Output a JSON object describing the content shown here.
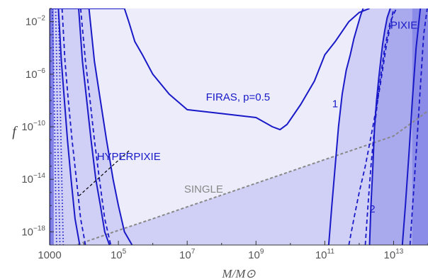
{
  "chart_data": {
    "type": "line",
    "xlabel": "M/M⊙",
    "ylabel": "f",
    "xscale": "log",
    "yscale": "log",
    "xlim": [
      1000,
      100000000000000.0
    ],
    "ylim": [
      1e-19,
      0.1
    ],
    "x_ticks": [
      {
        "base": "1000",
        "exp": ""
      },
      {
        "base": "10",
        "exp": "5"
      },
      {
        "base": "10",
        "exp": "7"
      },
      {
        "base": "10",
        "exp": "9"
      },
      {
        "base": "10",
        "exp": "11"
      },
      {
        "base": "10",
        "exp": "13"
      }
    ],
    "y_ticks": [
      {
        "base": "10",
        "exp": "−2"
      },
      {
        "base": "10",
        "exp": "−6"
      },
      {
        "base": "10",
        "exp": "−10"
      },
      {
        "base": "10",
        "exp": "−14"
      },
      {
        "base": "10",
        "exp": "−18"
      }
    ],
    "grid": false,
    "colors": {
      "curve": "#1919c8",
      "single": "#888888",
      "fill_light": "#ececfb",
      "fill_mid": "#d0d0f6",
      "fill_dark": "#a9a9ee",
      "fill_darkest": "#7f7fe6"
    },
    "series": [
      {
        "name": "FIRAS, p=0.5",
        "style": "solid",
        "x": [
          1000,
          1000,
          3000,
          10000,
          30000,
          100000,
          150000,
          200000,
          300000,
          500000,
          1000000,
          3000000,
          10000000,
          100000000,
          1000000000,
          3000000000,
          5000000000,
          8000000000,
          20000000000,
          50000000000,
          100000000000,
          200000000000,
          500000000000,
          1000000000000,
          2000000000000
        ],
        "y": [
          1e-19,
          0.1,
          0.1,
          0.1,
          0.1,
          0.1,
          0.1,
          0.01,
          0.0003,
          3e-05,
          1e-06,
          3e-08,
          2e-09,
          1e-09,
          5e-10,
          1e-10,
          6e-11,
          1.5e-10,
          5e-09,
          3e-07,
          3e-05,
          0.0003,
          0.01,
          0.05,
          0.1
        ]
      },
      {
        "name": "",
        "style": "dashed",
        "x": [
          1000,
          10000,
          100000,
          1000000,
          10000000,
          100000000,
          1000000000,
          10000000000,
          100000000000,
          1000000000000,
          10000000000000,
          100000000000000
        ],
        "y": [
          2e-20,
          1.6e-19,
          1.3e-18,
          1e-17,
          8e-17,
          6.3e-16,
          5e-15,
          4e-14,
          3.2e-13,
          2.5e-12,
          2e-11,
          1.6e-09
        ]
      },
      {
        "name": "",
        "style": "solid",
        "x": [
          130000000000,
          160000000000,
          200000000000,
          250000000000,
          320000000000,
          420000000000,
          550000000000,
          700000000000,
          900000000000,
          1100000000000,
          1300000000000
        ],
        "y": [
          1e-19,
          1e-16,
          1e-13,
          1e-10,
          3e-08,
          2e-06,
          3e-05,
          0.0005,
          0.005,
          0.03,
          0.1
        ]
      },
      {
        "name": "",
        "style": "solid",
        "x": [
          2000000000000,
          2200000000000,
          2500000000000,
          2800000000000,
          3200000000000,
          3700000000000,
          4200000000000,
          4800000000000,
          5500000000000,
          6500000000000,
          8000000000000
        ],
        "y": [
          1e-19,
          1e-16,
          1e-13,
          1e-10,
          1e-08,
          5e-07,
          1e-05,
          0.0002,
          0.002,
          0.02,
          0.1
        ]
      },
      {
        "name": "",
        "style": "solid",
        "x": [
          1800,
          2200,
          2700,
          3300,
          4200,
          5500,
          7500
        ],
        "y": [
          0.1,
          1e-05,
          1e-08,
          1e-11,
          1e-14,
          1e-17,
          1e-19
        ]
      },
      {
        "name": "",
        "style": "solid",
        "x": [
          7000,
          9000,
          12000,
          16000,
          22000,
          30000,
          40000,
          55000
        ],
        "y": [
          0.1,
          1e-05,
          1e-08,
          1e-11,
          1e-14,
          1e-16,
          1e-18,
          1e-19
        ]
      },
      {
        "name": "",
        "style": "solid",
        "x": [
          14000,
          20000,
          30000,
          45000,
          70000,
          100000,
          150000,
          250000
        ],
        "y": [
          0.1,
          1e-05,
          1e-08,
          1e-11,
          1e-14,
          1e-16,
          1e-18,
          1e-19
        ]
      },
      {
        "name": "",
        "style": "dashed",
        "x": [
          2300,
          2800,
          3500,
          4500,
          6000,
          8000,
          11000
        ],
        "y": [
          0.1,
          1e-05,
          1e-08,
          1e-11,
          1e-14,
          1e-17,
          1e-19
        ]
      },
      {
        "name": "",
        "style": "dashed",
        "x": [
          8000,
          11000,
          15000,
          20000,
          28000,
          40000,
          60000
        ],
        "y": [
          0.1,
          1e-05,
          1e-08,
          1e-11,
          1e-14,
          1e-17,
          1e-19
        ]
      },
      {
        "name": "",
        "style": "dotted",
        "x": [
          1200,
          1300,
          1400,
          1500,
          1600
        ],
        "y": [
          0.1,
          1e-05,
          1e-10,
          1e-15,
          1e-19
        ]
      },
      {
        "name": "",
        "style": "dotted",
        "x": [
          1500,
          1600,
          1700,
          1850,
          2000
        ],
        "y": [
          0.1,
          1e-05,
          1e-10,
          1e-15,
          1e-19
        ]
      },
      {
        "name": "",
        "style": "dotted",
        "x": [
          1800,
          1950,
          2100,
          2300,
          2500
        ],
        "y": [
          0.1,
          1e-05,
          1e-10,
          1e-15,
          1e-19
        ]
      },
      {
        "name": "",
        "style": "dashed",
        "x": [
          500000000000,
          700000000000,
          1000000000000,
          1500000000000,
          2500000000000,
          4000000000000,
          6000000000000,
          10000000000000
        ],
        "y": [
          1e-19,
          1e-17,
          1e-15,
          1e-13,
          1e-10,
          1e-07,
          0.0001,
          0.1
        ]
      },
      {
        "name": "",
        "style": "dashed",
        "x": [
          1500000000000,
          1800000000000,
          2200000000000,
          2800000000000,
          3800000000000,
          5500000000000,
          8000000000000,
          12000000000000
        ],
        "y": [
          1e-19,
          1e-16,
          1e-13,
          1e-10,
          1e-07,
          0.0001,
          0.01,
          0.1
        ]
      },
      {
        "name": "",
        "style": "solid",
        "x": [
          18000000000000,
          22000000000000,
          28000000000000,
          35000000000000,
          45000000000000,
          60000000000000
        ],
        "y": [
          1e-19,
          1e-16,
          1e-12,
          1e-08,
          0.0001,
          0.1
        ]
      },
      {
        "name": "",
        "style": "dashed",
        "x": [
          30000000000000,
          38000000000000,
          48000000000000,
          60000000000000,
          75000000000000,
          95000000000000
        ],
        "y": [
          1e-19,
          1e-15,
          1e-11,
          1e-07,
          0.001,
          0.1
        ]
      }
    ],
    "annotations": [
      {
        "text": "FIRAS, p=0.5",
        "x": 300000000,
        "y": 1e-08,
        "color": "#1919c8"
      },
      {
        "text": "PIXIE",
        "x": 20000000000000,
        "y": 0.003,
        "color": "#1919c8"
      },
      {
        "text": "1",
        "x": 200000000000,
        "y": 3e-09,
        "color": "#1919c8"
      },
      {
        "text": "2",
        "x": 2400000000000,
        "y": 3e-17,
        "color": "#1919c8"
      },
      {
        "text": "HYPERPIXIE",
        "x": 200000,
        "y": 3e-13,
        "color": "#1919c8"
      },
      {
        "text": "SINGLE",
        "x": 30000000,
        "y": 1e-15,
        "color": "#888888"
      }
    ]
  }
}
